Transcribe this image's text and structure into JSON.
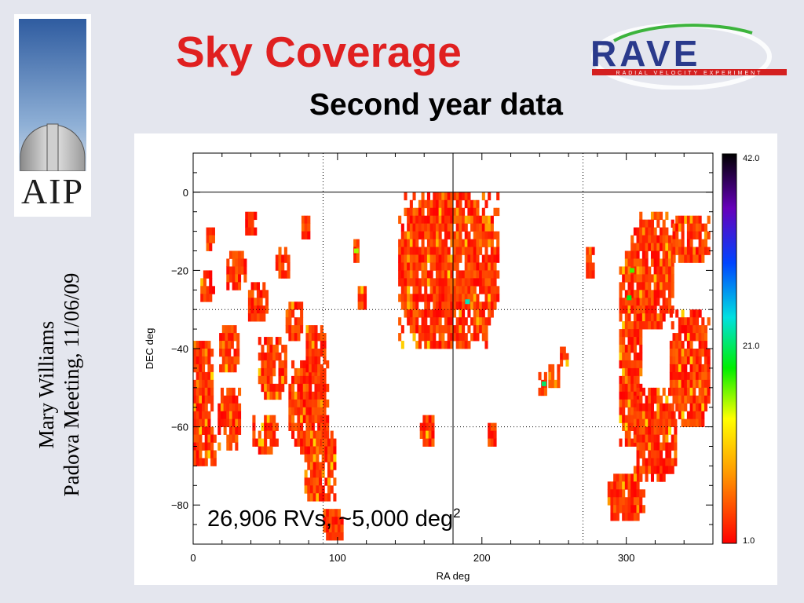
{
  "title": "Sky Coverage",
  "subtitle": "Second year data",
  "sidebar": {
    "logo_text": "AIP",
    "author": "Mary Williams",
    "meeting": "Padova Meeting, 11/06/09"
  },
  "rave_logo": {
    "name": "RAVE",
    "tagline": "RADIAL VELOCITY EXPERIMENT"
  },
  "annotation": {
    "text": "26,906 RVs, ~5,000 deg",
    "superscript": "2"
  },
  "colors": {
    "title": "#e02020",
    "background": "#e4e6ee",
    "rave_blue": "#2a3a8c",
    "rave_red": "#d42020",
    "rave_green": "#3cb43c"
  },
  "chart_data": {
    "type": "heatmap",
    "xlabel": "RA deg",
    "ylabel": "DEC deg",
    "xlim": [
      0,
      360
    ],
    "ylim": [
      -90,
      10
    ],
    "xticks": [
      0,
      100,
      200,
      300
    ],
    "yticks": [
      0,
      -20,
      -40,
      -60,
      -80
    ],
    "grid": "dotted",
    "colorbar": {
      "min": 1.0,
      "mid": 21.0,
      "max": 42.0,
      "labels": [
        "42.0",
        "21.0",
        "1.0"
      ]
    },
    "regions": [
      {
        "ra": 5,
        "dec": -50,
        "w": 18,
        "h": 24
      },
      {
        "ra": 8,
        "dec": -65,
        "w": 16,
        "h": 10
      },
      {
        "ra": 12,
        "dec": -12,
        "w": 6,
        "h": 6
      },
      {
        "ra": 10,
        "dec": -24,
        "w": 10,
        "h": 8
      },
      {
        "ra": 25,
        "dec": -40,
        "w": 14,
        "h": 12
      },
      {
        "ra": 30,
        "dec": -20,
        "w": 14,
        "h": 10
      },
      {
        "ra": 40,
        "dec": -8,
        "w": 8,
        "h": 6
      },
      {
        "ra": 25,
        "dec": -58,
        "w": 16,
        "h": 16
      },
      {
        "ra": 45,
        "dec": -28,
        "w": 14,
        "h": 10
      },
      {
        "ra": 55,
        "dec": -45,
        "w": 20,
        "h": 16
      },
      {
        "ra": 50,
        "dec": -62,
        "w": 18,
        "h": 10
      },
      {
        "ra": 62,
        "dec": -18,
        "w": 10,
        "h": 8
      },
      {
        "ra": 70,
        "dec": -33,
        "w": 12,
        "h": 10
      },
      {
        "ra": 78,
        "dec": -9,
        "w": 6,
        "h": 6
      },
      {
        "ra": 80,
        "dec": -55,
        "w": 28,
        "h": 24
      },
      {
        "ra": 85,
        "dec": -40,
        "w": 14,
        "h": 12
      },
      {
        "ra": 88,
        "dec": -70,
        "w": 22,
        "h": 18
      },
      {
        "ra": 97,
        "dec": -85,
        "w": 14,
        "h": 8
      },
      {
        "ra": 113,
        "dec": -15,
        "w": 4,
        "h": 6
      },
      {
        "ra": 117,
        "dec": -27,
        "w": 6,
        "h": 6
      },
      {
        "ra": 177,
        "dec": -20,
        "w": 70,
        "h": 40
      },
      {
        "ra": 162,
        "dec": -61,
        "w": 10,
        "h": 8
      },
      {
        "ra": 207,
        "dec": -62,
        "w": 6,
        "h": 6
      },
      {
        "ra": 242,
        "dec": -49,
        "w": 6,
        "h": 6
      },
      {
        "ra": 250,
        "dec": -47,
        "w": 8,
        "h": 6
      },
      {
        "ra": 257,
        "dec": -42,
        "w": 6,
        "h": 5
      },
      {
        "ra": 275,
        "dec": -18,
        "w": 6,
        "h": 8
      },
      {
        "ra": 303,
        "dec": -40,
        "w": 16,
        "h": 50
      },
      {
        "ra": 318,
        "dec": -20,
        "w": 30,
        "h": 30
      },
      {
        "ra": 345,
        "dec": -45,
        "w": 30,
        "h": 30
      },
      {
        "ra": 320,
        "dec": -62,
        "w": 30,
        "h": 24
      },
      {
        "ra": 300,
        "dec": -78,
        "w": 26,
        "h": 12
      },
      {
        "ra": 345,
        "dec": -12,
        "w": 26,
        "h": 12
      }
    ],
    "highlights": [
      {
        "ra": 243,
        "dec": -49,
        "level": 22
      },
      {
        "ra": 190,
        "dec": -28,
        "level": 24
      },
      {
        "ra": 304,
        "dec": -20,
        "level": 18
      },
      {
        "ra": 302,
        "dec": -27,
        "level": 20
      },
      {
        "ra": 113,
        "dec": -15,
        "level": 16
      }
    ]
  }
}
